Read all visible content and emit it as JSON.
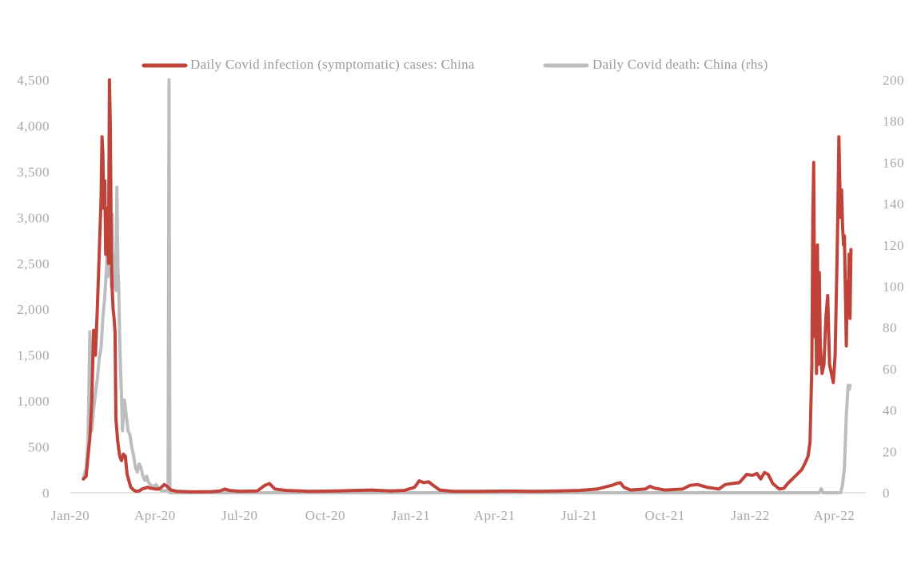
{
  "chart_data": {
    "type": "line",
    "title": "",
    "xlabel": "",
    "ylabel": "",
    "x_range": [
      "2020-01-01",
      "2022-05-05"
    ],
    "x_tick_labels": [
      {
        "label": "Jan-20",
        "date": "2020-01-01"
      },
      {
        "label": "Apr-20",
        "date": "2020-04-01"
      },
      {
        "label": "Jul-20",
        "date": "2020-07-01"
      },
      {
        "label": "Oct-20",
        "date": "2020-10-01"
      },
      {
        "label": "Jan-21",
        "date": "2021-01-01"
      },
      {
        "label": "Apr-21",
        "date": "2021-04-01"
      },
      {
        "label": "Jul-21",
        "date": "2021-07-01"
      },
      {
        "label": "Oct-21",
        "date": "2021-10-01"
      },
      {
        "label": "Jan-22",
        "date": "2022-01-01"
      },
      {
        "label": "Apr-22",
        "date": "2022-04-01"
      }
    ],
    "ylim_left": [
      0,
      4500
    ],
    "y_ticks_left": [
      "0",
      "500",
      "1,000",
      "1,500",
      "2,000",
      "2,500",
      "3,000",
      "3,500",
      "4,000",
      "4,500"
    ],
    "ylim_right": [
      0,
      200
    ],
    "y_ticks_right": [
      "0",
      "20",
      "40",
      "60",
      "80",
      "100",
      "120",
      "140",
      "160",
      "180",
      "200"
    ],
    "grid": false,
    "legend_position": "top-center",
    "series": [
      {
        "name": "Daily Covid infection (symptomatic) cases: China",
        "axis": "left",
        "color": "#c0433a",
        "points": [
          [
            "2020-01-15",
            150
          ],
          [
            "2020-01-18",
            180
          ],
          [
            "2020-01-20",
            400
          ],
          [
            "2020-01-22",
            600
          ],
          [
            "2020-01-24",
            1000
          ],
          [
            "2020-01-26",
            1770
          ],
          [
            "2020-01-28",
            1500
          ],
          [
            "2020-01-30",
            2000
          ],
          [
            "2020-02-01",
            2600
          ],
          [
            "2020-02-03",
            3200
          ],
          [
            "2020-02-04",
            3880
          ],
          [
            "2020-02-05",
            3700
          ],
          [
            "2020-02-06",
            3100
          ],
          [
            "2020-02-07",
            3400
          ],
          [
            "2020-02-08",
            2600
          ],
          [
            "2020-02-09",
            3100
          ],
          [
            "2020-02-10",
            3000
          ],
          [
            "2020-02-11",
            2500
          ],
          [
            "2020-02-12",
            4500
          ],
          [
            "2020-02-13",
            4000
          ],
          [
            "2020-02-14",
            2600
          ],
          [
            "2020-02-15",
            2200
          ],
          [
            "2020-02-16",
            2000
          ],
          [
            "2020-02-17",
            1900
          ],
          [
            "2020-02-18",
            1750
          ],
          [
            "2020-02-19",
            800
          ],
          [
            "2020-02-21",
            550
          ],
          [
            "2020-02-23",
            400
          ],
          [
            "2020-02-25",
            350
          ],
          [
            "2020-02-27",
            420
          ],
          [
            "2020-02-29",
            400
          ],
          [
            "2020-03-02",
            200
          ],
          [
            "2020-03-04",
            130
          ],
          [
            "2020-03-06",
            60
          ],
          [
            "2020-03-09",
            30
          ],
          [
            "2020-03-12",
            15
          ],
          [
            "2020-03-15",
            20
          ],
          [
            "2020-03-18",
            40
          ],
          [
            "2020-03-21",
            50
          ],
          [
            "2020-03-24",
            60
          ],
          [
            "2020-03-27",
            50
          ],
          [
            "2020-03-30",
            45
          ],
          [
            "2020-04-02",
            40
          ],
          [
            "2020-04-05",
            40
          ],
          [
            "2020-04-08",
            60
          ],
          [
            "2020-04-11",
            90
          ],
          [
            "2020-04-14",
            70
          ],
          [
            "2020-04-18",
            30
          ],
          [
            "2020-04-25",
            15
          ],
          [
            "2020-05-10",
            10
          ],
          [
            "2020-06-01",
            12
          ],
          [
            "2020-06-10",
            20
          ],
          [
            "2020-06-15",
            40
          ],
          [
            "2020-06-20",
            25
          ],
          [
            "2020-07-01",
            15
          ],
          [
            "2020-07-20",
            20
          ],
          [
            "2020-07-28",
            80
          ],
          [
            "2020-08-02",
            100
          ],
          [
            "2020-08-08",
            40
          ],
          [
            "2020-08-20",
            25
          ],
          [
            "2020-09-15",
            15
          ],
          [
            "2020-10-15",
            20
          ],
          [
            "2020-11-01",
            25
          ],
          [
            "2020-11-20",
            30
          ],
          [
            "2020-12-10",
            20
          ],
          [
            "2020-12-25",
            25
          ],
          [
            "2021-01-05",
            60
          ],
          [
            "2021-01-10",
            130
          ],
          [
            "2021-01-15",
            110
          ],
          [
            "2021-01-20",
            120
          ],
          [
            "2021-01-25",
            80
          ],
          [
            "2021-02-01",
            30
          ],
          [
            "2021-02-15",
            15
          ],
          [
            "2021-03-15",
            15
          ],
          [
            "2021-04-15",
            18
          ],
          [
            "2021-05-15",
            15
          ],
          [
            "2021-06-10",
            20
          ],
          [
            "2021-07-01",
            25
          ],
          [
            "2021-07-20",
            40
          ],
          [
            "2021-07-28",
            60
          ],
          [
            "2021-08-05",
            80
          ],
          [
            "2021-08-10",
            100
          ],
          [
            "2021-08-14",
            110
          ],
          [
            "2021-08-18",
            60
          ],
          [
            "2021-08-25",
            30
          ],
          [
            "2021-09-10",
            40
          ],
          [
            "2021-09-15",
            70
          ],
          [
            "2021-09-20",
            50
          ],
          [
            "2021-10-01",
            30
          ],
          [
            "2021-10-20",
            40
          ],
          [
            "2021-10-28",
            80
          ],
          [
            "2021-11-05",
            90
          ],
          [
            "2021-11-15",
            60
          ],
          [
            "2021-11-22",
            50
          ],
          [
            "2021-11-28",
            40
          ],
          [
            "2021-12-05",
            90
          ],
          [
            "2021-12-12",
            100
          ],
          [
            "2021-12-20",
            110
          ],
          [
            "2021-12-28",
            200
          ],
          [
            "2022-01-03",
            190
          ],
          [
            "2022-01-08",
            210
          ],
          [
            "2022-01-12",
            150
          ],
          [
            "2022-01-16",
            220
          ],
          [
            "2022-01-20",
            200
          ],
          [
            "2022-01-25",
            100
          ],
          [
            "2022-02-01",
            40
          ],
          [
            "2022-02-06",
            50
          ],
          [
            "2022-02-10",
            100
          ],
          [
            "2022-02-15",
            150
          ],
          [
            "2022-02-20",
            200
          ],
          [
            "2022-02-25",
            250
          ],
          [
            "2022-03-01",
            330
          ],
          [
            "2022-03-04",
            400
          ],
          [
            "2022-03-06",
            550
          ],
          [
            "2022-03-08",
            1400
          ],
          [
            "2022-03-09",
            3000
          ],
          [
            "2022-03-10",
            3600
          ],
          [
            "2022-03-11",
            1700
          ],
          [
            "2022-03-12",
            2400
          ],
          [
            "2022-03-13",
            1300
          ],
          [
            "2022-03-14",
            2700
          ],
          [
            "2022-03-15",
            1400
          ],
          [
            "2022-03-16",
            2400
          ],
          [
            "2022-03-17",
            1600
          ],
          [
            "2022-03-19",
            1300
          ],
          [
            "2022-03-21",
            1400
          ],
          [
            "2022-03-23",
            1900
          ],
          [
            "2022-03-25",
            2150
          ],
          [
            "2022-03-27",
            1400
          ],
          [
            "2022-03-29",
            1300
          ],
          [
            "2022-03-31",
            1200
          ],
          [
            "2022-04-02",
            1500
          ],
          [
            "2022-04-04",
            2500
          ],
          [
            "2022-04-05",
            3100
          ],
          [
            "2022-04-06",
            3880
          ],
          [
            "2022-04-07",
            3400
          ],
          [
            "2022-04-08",
            3000
          ],
          [
            "2022-04-09",
            3300
          ],
          [
            "2022-04-10",
            2900
          ],
          [
            "2022-04-11",
            2700
          ],
          [
            "2022-04-12",
            2800
          ],
          [
            "2022-04-13",
            2200
          ],
          [
            "2022-04-14",
            1600
          ],
          [
            "2022-04-15",
            2300
          ],
          [
            "2022-04-16",
            2000
          ],
          [
            "2022-04-17",
            2600
          ],
          [
            "2022-04-18",
            1900
          ],
          [
            "2022-04-19",
            2650
          ]
        ]
      },
      {
        "name": "Daily Covid death: China (rhs)",
        "axis": "right",
        "color": "#bdbdbd",
        "points": [
          [
            "2020-01-15",
            7
          ],
          [
            "2020-01-18",
            12
          ],
          [
            "2020-01-20",
            25
          ],
          [
            "2020-01-22",
            78
          ],
          [
            "2020-01-24",
            30
          ],
          [
            "2020-01-26",
            40
          ],
          [
            "2020-01-28",
            48
          ],
          [
            "2020-01-30",
            55
          ],
          [
            "2020-02-01",
            65
          ],
          [
            "2020-02-03",
            70
          ],
          [
            "2020-02-05",
            85
          ],
          [
            "2020-02-07",
            95
          ],
          [
            "2020-02-09",
            110
          ],
          [
            "2020-02-10",
            135
          ],
          [
            "2020-02-11",
            105
          ],
          [
            "2020-02-12",
            130
          ],
          [
            "2020-02-13",
            120
          ],
          [
            "2020-02-14",
            100
          ],
          [
            "2020-02-15",
            135
          ],
          [
            "2020-02-16",
            110
          ],
          [
            "2020-02-17",
            100
          ],
          [
            "2020-02-18",
            115
          ],
          [
            "2020-02-19",
            98
          ],
          [
            "2020-02-20",
            148
          ],
          [
            "2020-02-21",
            110
          ],
          [
            "2020-02-22",
            100
          ],
          [
            "2020-02-23",
            75
          ],
          [
            "2020-02-24",
            60
          ],
          [
            "2020-02-25",
            47
          ],
          [
            "2020-02-26",
            30
          ],
          [
            "2020-02-28",
            45
          ],
          [
            "2020-03-01",
            38
          ],
          [
            "2020-03-03",
            30
          ],
          [
            "2020-03-05",
            28
          ],
          [
            "2020-03-07",
            22
          ],
          [
            "2020-03-09",
            18
          ],
          [
            "2020-03-11",
            12
          ],
          [
            "2020-03-13",
            10
          ],
          [
            "2020-03-15",
            14
          ],
          [
            "2020-03-17",
            12
          ],
          [
            "2020-03-19",
            8
          ],
          [
            "2020-03-21",
            6
          ],
          [
            "2020-03-23",
            8
          ],
          [
            "2020-03-25",
            5
          ],
          [
            "2020-03-27",
            4
          ],
          [
            "2020-03-29",
            3
          ],
          [
            "2020-03-31",
            3
          ],
          [
            "2020-04-02",
            4
          ],
          [
            "2020-04-05",
            2
          ],
          [
            "2020-04-08",
            1
          ],
          [
            "2020-04-12",
            1
          ],
          [
            "2020-04-15",
            1
          ],
          [
            "2020-04-16",
            200
          ],
          [
            "2020-04-17",
            0
          ],
          [
            "2020-04-25",
            0
          ],
          [
            "2020-05-10",
            0
          ],
          [
            "2022-03-16",
            0
          ],
          [
            "2022-03-18",
            2
          ],
          [
            "2022-03-20",
            0
          ],
          [
            "2022-04-08",
            0
          ],
          [
            "2022-04-10",
            4
          ],
          [
            "2022-04-12",
            12
          ],
          [
            "2022-04-13",
            25
          ],
          [
            "2022-04-14",
            38
          ],
          [
            "2022-04-15",
            45
          ],
          [
            "2022-04-16",
            52
          ],
          [
            "2022-04-17",
            50
          ],
          [
            "2022-04-18",
            52
          ]
        ]
      }
    ]
  }
}
